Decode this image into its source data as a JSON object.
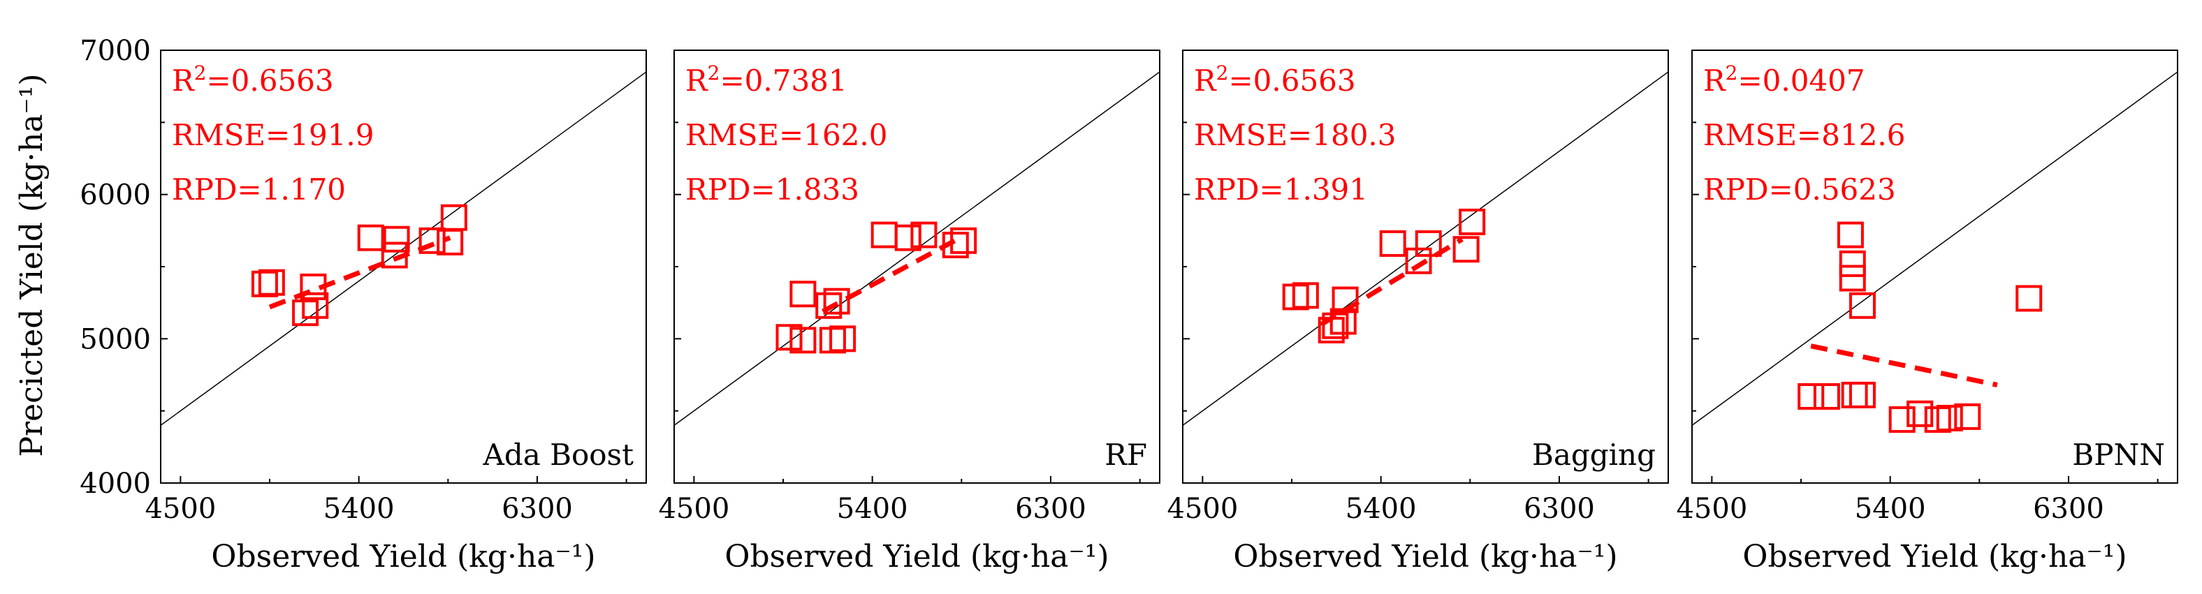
{
  "chart_data": {
    "type": "scatter",
    "shared": {
      "xlabel": "Observed Yield (kg·ha⁻¹)",
      "ylabel": "Precicted Yield (kg·ha⁻¹)",
      "xlim": [
        4400,
        6850
      ],
      "ylim": [
        4000,
        7000
      ],
      "x_ticks": [
        4500,
        5400,
        6300
      ],
      "y_ticks": [
        4000,
        5000,
        6000,
        7000
      ],
      "reference_line": "1:1"
    },
    "panels": [
      {
        "model": "Ada Boost",
        "r2_prefix": "R",
        "r2_sup": "2",
        "r2_value": "=0.6563",
        "rmse": "RMSE=191.9",
        "rpd": "RPD=1.170",
        "points": [
          [
            4925,
            5380
          ],
          [
            4960,
            5390
          ],
          [
            5130,
            5180
          ],
          [
            5180,
            5230
          ],
          [
            5170,
            5360
          ],
          [
            5460,
            5700
          ],
          [
            5580,
            5580
          ],
          [
            5590,
            5690
          ],
          [
            5770,
            5680
          ],
          [
            5860,
            5670
          ],
          [
            5880,
            5840
          ]
        ],
        "fit": [
          [
            4950,
            5220
          ],
          [
            5860,
            5700
          ]
        ]
      },
      {
        "model": "RF",
        "r2_prefix": "R",
        "r2_sup": "2",
        "r2_value": "=0.7381",
        "rmse": "RMSE=162.0",
        "rpd": "RPD=1.833",
        "points": [
          [
            4980,
            5010
          ],
          [
            5050,
            4990
          ],
          [
            5050,
            5310
          ],
          [
            5180,
            5230
          ],
          [
            5220,
            5260
          ],
          [
            5200,
            4990
          ],
          [
            5250,
            5000
          ],
          [
            5460,
            5720
          ],
          [
            5580,
            5700
          ],
          [
            5660,
            5720
          ],
          [
            5820,
            5650
          ],
          [
            5860,
            5680
          ]
        ],
        "fit": [
          [
            5150,
            5190
          ],
          [
            5830,
            5690
          ]
        ]
      },
      {
        "model": "Bagging",
        "r2_prefix": "R",
        "r2_sup": "2",
        "r2_value": "=0.6563",
        "rmse": "RMSE=180.3",
        "rpd": "RPD=1.391",
        "points": [
          [
            4970,
            5290
          ],
          [
            5020,
            5300
          ],
          [
            5150,
            5060
          ],
          [
            5170,
            5090
          ],
          [
            5210,
            5120
          ],
          [
            5220,
            5270
          ],
          [
            5460,
            5660
          ],
          [
            5590,
            5540
          ],
          [
            5640,
            5660
          ],
          [
            5830,
            5620
          ],
          [
            5860,
            5810
          ]
        ],
        "fit": [
          [
            5100,
            5100
          ],
          [
            5810,
            5690
          ]
        ]
      },
      {
        "model": "BPNN",
        "r2_prefix": "R",
        "r2_sup": "2",
        "r2_value": "=0.0407",
        "rmse": "RMSE=812.6",
        "rpd": "RPD=0.5623",
        "points": [
          [
            5000,
            4600
          ],
          [
            5080,
            4600
          ],
          [
            5200,
            5720
          ],
          [
            5210,
            5520
          ],
          [
            5210,
            5420
          ],
          [
            5220,
            4610
          ],
          [
            5260,
            4610
          ],
          [
            5260,
            5230
          ],
          [
            5460,
            4440
          ],
          [
            5550,
            4480
          ],
          [
            5640,
            4440
          ],
          [
            5700,
            4450
          ],
          [
            5790,
            4460
          ],
          [
            6100,
            5280
          ]
        ],
        "fit": [
          [
            5000,
            4950
          ],
          [
            5940,
            4680
          ]
        ]
      }
    ]
  }
}
